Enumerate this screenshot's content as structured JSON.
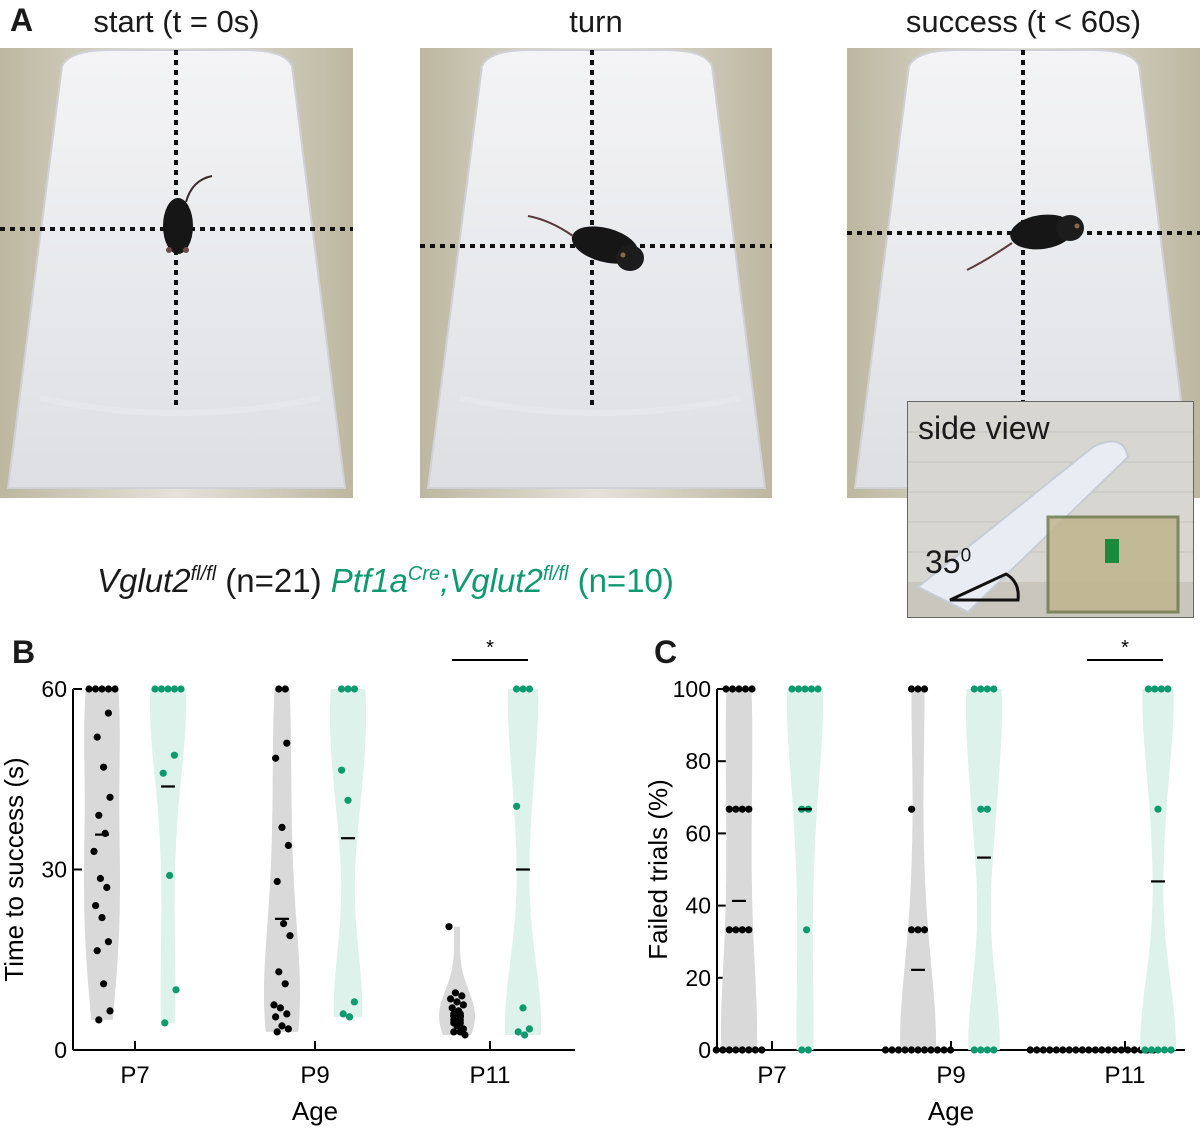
{
  "panel_a": {
    "letter": "A",
    "photos": [
      {
        "title": "start (t = 0s)"
      },
      {
        "title": "turn"
      },
      {
        "title": "success (t < 60s)"
      }
    ],
    "inset": {
      "label": "side view",
      "angle": "35",
      "angle_unit": "0"
    }
  },
  "legend": {
    "group1_name": "Vglut2",
    "group1_sup": "fl/fl",
    "group1_n": " (n=21)",
    "group2_name1": "Ptf1a",
    "group2_sup1": "Cre",
    "group2_name2": ";Vglut2",
    "group2_sup2": "fl/fl",
    "group2_n": " (n=10)"
  },
  "colors": {
    "control_points": "#000000",
    "control_violin": "#d9d9d9",
    "mutant_points": "#0d9a6e",
    "mutant_violin": "#dcf2ea"
  },
  "chart_data": [
    {
      "panel": "B",
      "type": "violin-scatter",
      "xlabel": "Age",
      "ylabel": "Time to success (s)",
      "categories": [
        "P7",
        "P9",
        "P11"
      ],
      "ylim": [
        0,
        60
      ],
      "yticks": [
        0,
        30,
        60
      ],
      "significance": [
        {
          "category": "P11",
          "label": "*"
        }
      ],
      "series": [
        {
          "group": "control",
          "means": [
            35.8,
            21.8,
            5.6
          ],
          "points": [
            [
              60,
              60,
              60,
              60,
              60,
              56,
              52,
              47,
              42,
              39,
              36,
              33,
              28.5,
              27,
              24,
              22,
              18,
              16.5,
              11,
              6.5,
              5
            ],
            [
              60,
              60,
              51,
              48.5,
              37,
              34,
              28,
              21,
              19,
              13,
              11,
              7.5,
              7,
              6,
              5.5,
              4,
              3.5,
              3
            ],
            [
              20.5,
              9.5,
              9,
              8.5,
              8,
              7.5,
              7,
              6.5,
              6,
              6,
              5.5,
              5,
              5,
              4.5,
              4.5,
              4,
              3.5,
              3,
              3,
              2.5
            ]
          ]
        },
        {
          "group": "mutant",
          "means": [
            43.8,
            35.2,
            30
          ],
          "points": [
            [
              60,
              60,
              60,
              60,
              60,
              49,
              46,
              29,
              10,
              4.5
            ],
            [
              60,
              60,
              60,
              46.5,
              41.5,
              8,
              6,
              5.5
            ],
            [
              60,
              60,
              60,
              40.5,
              7,
              3.5,
              3,
              2.5
            ]
          ]
        }
      ]
    },
    {
      "panel": "C",
      "type": "violin-scatter",
      "xlabel": "Age",
      "ylabel": "Failed trials (%)",
      "categories": [
        "P7",
        "P9",
        "P11"
      ],
      "ylim": [
        0,
        100
      ],
      "yticks": [
        0,
        20,
        40,
        60,
        80,
        100
      ],
      "significance": [
        {
          "category": "P11",
          "label": "*"
        }
      ],
      "series": [
        {
          "group": "control",
          "means": [
            41.3,
            22.2,
            0
          ],
          "points": [
            [
              100,
              100,
              100,
              100,
              100,
              66.7,
              66.7,
              66.7,
              66.7,
              33.3,
              33.3,
              33.3,
              33.3,
              0,
              0,
              0,
              0,
              0,
              0,
              0,
              0
            ],
            [
              100,
              100,
              100,
              66.7,
              33.3,
              33.3,
              33.3,
              0,
              0,
              0,
              0,
              0,
              0,
              0,
              0,
              0,
              0,
              0
            ],
            [
              0,
              0,
              0,
              0,
              0,
              0,
              0,
              0,
              0,
              0,
              0,
              0,
              0,
              0,
              0,
              0,
              0,
              0,
              0,
              0
            ]
          ]
        },
        {
          "group": "mutant",
          "means": [
            66.7,
            53.3,
            46.7
          ],
          "points": [
            [
              100,
              100,
              100,
              100,
              100,
              66.7,
              66.7,
              33.3,
              0,
              0
            ],
            [
              100,
              100,
              100,
              100,
              66.7,
              66.7,
              0,
              0,
              0,
              0
            ],
            [
              100,
              100,
              100,
              100,
              66.7,
              0,
              0,
              0,
              0,
              0
            ]
          ]
        }
      ]
    }
  ]
}
